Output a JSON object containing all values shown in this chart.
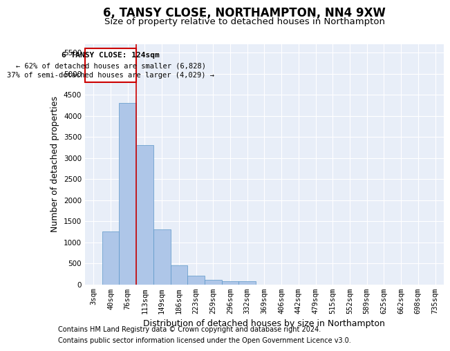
{
  "title": "6, TANSY CLOSE, NORTHAMPTON, NN4 9XW",
  "subtitle": "Size of property relative to detached houses in Northampton",
  "xlabel": "Distribution of detached houses by size in Northampton",
  "ylabel": "Number of detached properties",
  "footer_line1": "Contains HM Land Registry data © Crown copyright and database right 2024.",
  "footer_line2": "Contains public sector information licensed under the Open Government Licence v3.0.",
  "categories": [
    "3sqm",
    "40sqm",
    "76sqm",
    "113sqm",
    "149sqm",
    "186sqm",
    "223sqm",
    "259sqm",
    "296sqm",
    "332sqm",
    "369sqm",
    "406sqm",
    "442sqm",
    "479sqm",
    "515sqm",
    "552sqm",
    "589sqm",
    "625sqm",
    "662sqm",
    "698sqm",
    "735sqm"
  ],
  "values": [
    0,
    1250,
    4300,
    3300,
    1300,
    450,
    200,
    100,
    80,
    80,
    0,
    0,
    0,
    0,
    0,
    0,
    0,
    0,
    0,
    0,
    0
  ],
  "bar_color": "#aec6e8",
  "bar_edge_color": "#5a96c8",
  "red_line_index": 3,
  "annotation_text_line1": "6 TANSY CLOSE: 124sqm",
  "annotation_text_line2": "← 62% of detached houses are smaller (6,828)",
  "annotation_text_line3": "37% of semi-detached houses are larger (4,029) →",
  "annotation_box_color": "#ffffff",
  "annotation_box_edge_color": "#cc0000",
  "ylim": [
    0,
    5700
  ],
  "yticks": [
    0,
    500,
    1000,
    1500,
    2000,
    2500,
    3000,
    3500,
    4000,
    4500,
    5000,
    5500
  ],
  "background_color": "#e8eef8",
  "grid_color": "#ffffff",
  "title_fontsize": 12,
  "subtitle_fontsize": 9.5,
  "tick_fontsize": 7.5,
  "label_fontsize": 9,
  "footer_fontsize": 7,
  "ann_fontsize1": 8,
  "ann_fontsize2": 7.5
}
